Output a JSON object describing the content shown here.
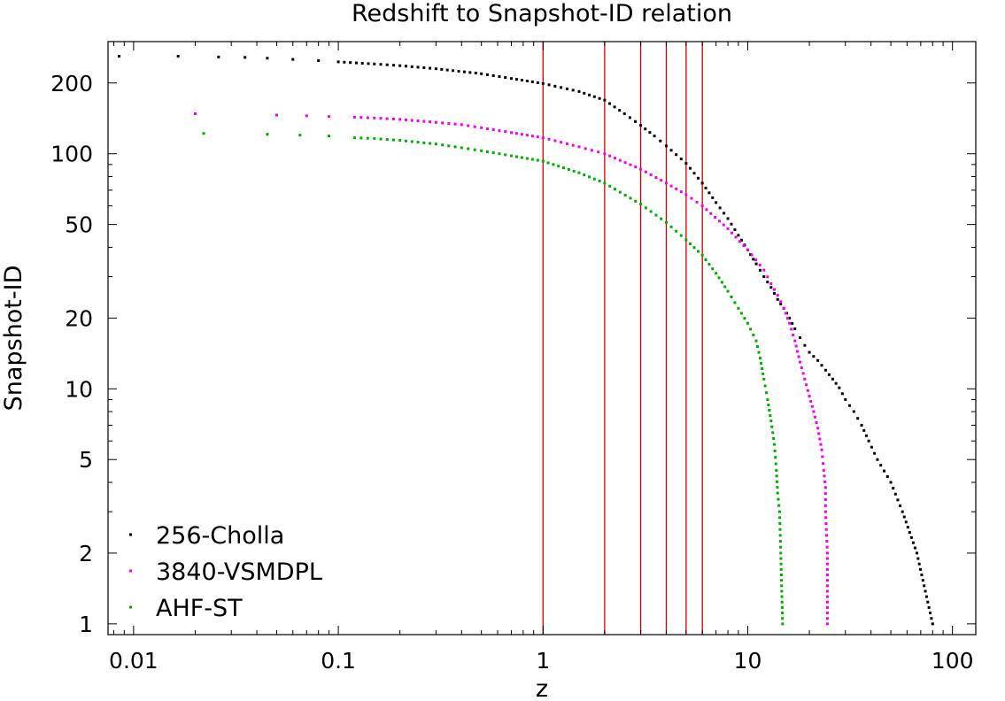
{
  "chart_data": {
    "type": "scatter",
    "title": "Redshift to Snapshot-ID relation",
    "xlabel": "z",
    "ylabel": "Snapshot-ID",
    "xscale": "log",
    "yscale": "log",
    "xlim": [
      0.0075,
      130
    ],
    "ylim": [
      0.9,
      300
    ],
    "xticks": [
      {
        "value": 0.01,
        "label": "0.01"
      },
      {
        "value": 0.1,
        "label": "0.1"
      },
      {
        "value": 1,
        "label": "1"
      },
      {
        "value": 10,
        "label": "10"
      },
      {
        "value": 100,
        "label": "100"
      }
    ],
    "yticks": [
      {
        "value": 1,
        "label": "1"
      },
      {
        "value": 2,
        "label": "2"
      },
      {
        "value": 5,
        "label": "5"
      },
      {
        "value": 10,
        "label": "10"
      },
      {
        "value": 20,
        "label": "20"
      },
      {
        "value": 50,
        "label": "50"
      },
      {
        "value": 100,
        "label": "100"
      },
      {
        "value": 200,
        "label": "200"
      }
    ],
    "vlines": [
      1,
      2,
      3,
      4,
      5,
      6
    ],
    "vline_color": "#cc0000",
    "legend_position": "bottom-left",
    "grid": false,
    "series": [
      {
        "name": "256-Cholla",
        "color": "#000000",
        "points": [
          [
            0.0085,
            260
          ],
          [
            0.0165,
            260
          ],
          [
            0.026,
            258
          ],
          [
            0.035,
            257
          ],
          [
            0.045,
            255
          ],
          [
            0.06,
            252
          ],
          [
            0.08,
            249
          ],
          [
            0.1,
            246
          ],
          [
            0.15,
            241
          ],
          [
            0.2,
            237
          ],
          [
            0.3,
            230
          ],
          [
            0.5,
            219
          ],
          [
            0.7,
            209
          ],
          [
            1,
            199
          ],
          [
            1.5,
            184
          ],
          [
            2,
            169
          ],
          [
            2.5,
            148
          ],
          [
            3,
            132
          ],
          [
            3.5,
            119
          ],
          [
            4,
            108
          ],
          [
            5,
            91
          ],
          [
            6,
            75
          ],
          [
            7,
            62
          ],
          [
            8,
            53
          ],
          [
            9,
            45
          ],
          [
            10,
            39
          ],
          [
            11,
            34
          ],
          [
            12,
            30
          ],
          [
            13,
            27
          ],
          [
            14,
            24
          ],
          [
            15,
            22
          ],
          [
            16,
            20
          ],
          [
            17,
            18
          ],
          [
            18,
            16.5
          ],
          [
            19,
            15.3
          ],
          [
            20,
            14.3
          ],
          [
            22,
            13.2
          ],
          [
            24,
            12
          ],
          [
            26,
            11
          ],
          [
            28,
            10.1
          ],
          [
            30,
            9
          ],
          [
            33,
            8
          ],
          [
            36,
            7
          ],
          [
            39,
            6
          ],
          [
            43,
            5
          ],
          [
            50,
            4
          ],
          [
            57,
            3
          ],
          [
            67,
            2
          ],
          [
            80,
            1
          ]
        ]
      },
      {
        "name": "3840-VSMDPL",
        "color": "#ee00ee",
        "points": [
          [
            0.02,
            148
          ],
          [
            0.05,
            146
          ],
          [
            0.07,
            145
          ],
          [
            0.09,
            144
          ],
          [
            0.12,
            143
          ],
          [
            0.15,
            142
          ],
          [
            0.2,
            140
          ],
          [
            0.3,
            136
          ],
          [
            0.4,
            133
          ],
          [
            0.5,
            129
          ],
          [
            0.7,
            123
          ],
          [
            1,
            117
          ],
          [
            1.5,
            107
          ],
          [
            2,
            100
          ],
          [
            3,
            86
          ],
          [
            4,
            75
          ],
          [
            5,
            67
          ],
          [
            6,
            60
          ],
          [
            8,
            48
          ],
          [
            10,
            39
          ],
          [
            12,
            32
          ],
          [
            13,
            28
          ],
          [
            14,
            25
          ],
          [
            15,
            22
          ],
          [
            16,
            19
          ],
          [
            17,
            16
          ],
          [
            18,
            13
          ],
          [
            19,
            11
          ],
          [
            20,
            9.3
          ],
          [
            21,
            8
          ],
          [
            22,
            6.8
          ],
          [
            23,
            5.5
          ],
          [
            23.5,
            4.5
          ],
          [
            24,
            3.8
          ],
          [
            24,
            3
          ],
          [
            24.5,
            2
          ],
          [
            24.5,
            1
          ]
        ]
      },
      {
        "name": "AHF-ST",
        "color": "#00aa00",
        "points": [
          [
            0.022,
            122
          ],
          [
            0.045,
            121
          ],
          [
            0.065,
            120
          ],
          [
            0.09,
            119
          ],
          [
            0.12,
            117
          ],
          [
            0.15,
            116
          ],
          [
            0.2,
            114
          ],
          [
            0.3,
            110
          ],
          [
            0.4,
            106
          ],
          [
            0.5,
            103
          ],
          [
            0.7,
            98
          ],
          [
            1,
            93
          ],
          [
            1.5,
            83
          ],
          [
            2,
            75
          ],
          [
            3,
            61
          ],
          [
            4,
            51
          ],
          [
            5,
            43
          ],
          [
            6,
            37
          ],
          [
            7,
            31
          ],
          [
            8,
            26
          ],
          [
            9,
            22
          ],
          [
            10,
            19
          ],
          [
            11,
            16
          ],
          [
            11.5,
            13.5
          ],
          [
            12,
            11
          ],
          [
            12.5,
            9
          ],
          [
            13,
            7.3
          ],
          [
            13.5,
            5.8
          ],
          [
            13.8,
            4.5
          ],
          [
            14,
            3.6
          ],
          [
            14.3,
            3
          ],
          [
            14.5,
            2
          ],
          [
            14.8,
            1
          ]
        ]
      }
    ]
  }
}
